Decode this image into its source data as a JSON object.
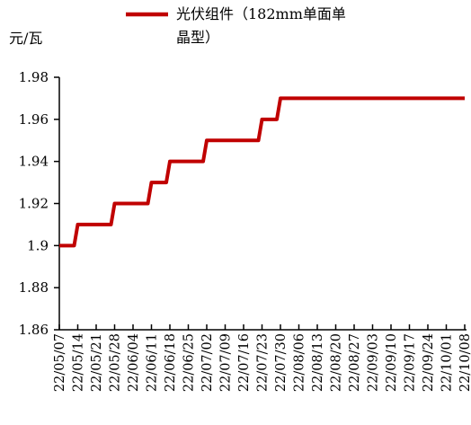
{
  "chart_data": {
    "type": "line",
    "ylabel": "元/瓦",
    "ylim": [
      1.86,
      1.98
    ],
    "yticks": [
      1.86,
      1.88,
      1.9,
      1.92,
      1.94,
      1.96,
      1.98
    ],
    "ytick_labels": [
      "1.86",
      "1.88",
      "1.9",
      "1.92",
      "1.94",
      "1.96",
      "1.98"
    ],
    "grid": false,
    "legend_position": "top",
    "categories": [
      "22/05/07",
      "22/05/14",
      "22/05/21",
      "22/05/28",
      "22/06/04",
      "22/06/11",
      "22/06/18",
      "22/06/25",
      "22/07/02",
      "22/07/09",
      "22/07/16",
      "22/07/23",
      "22/07/30",
      "22/08/06",
      "22/08/13",
      "22/08/20",
      "22/08/27",
      "22/09/03",
      "22/09/10",
      "22/09/17",
      "22/09/24",
      "22/10/01",
      "22/10/08"
    ],
    "series": [
      {
        "name": "光伏组件（182mm单面单晶型）",
        "legend_lines": [
          "光伏组件（182mm单面单",
          "晶型）"
        ],
        "color": "#c00000",
        "values": [
          1.9,
          1.91,
          1.91,
          1.92,
          1.92,
          1.93,
          1.94,
          1.94,
          1.95,
          1.95,
          1.95,
          1.96,
          1.97,
          1.97,
          1.97,
          1.97,
          1.97,
          1.97,
          1.97,
          1.97,
          1.97,
          1.97,
          1.97
        ]
      }
    ]
  }
}
